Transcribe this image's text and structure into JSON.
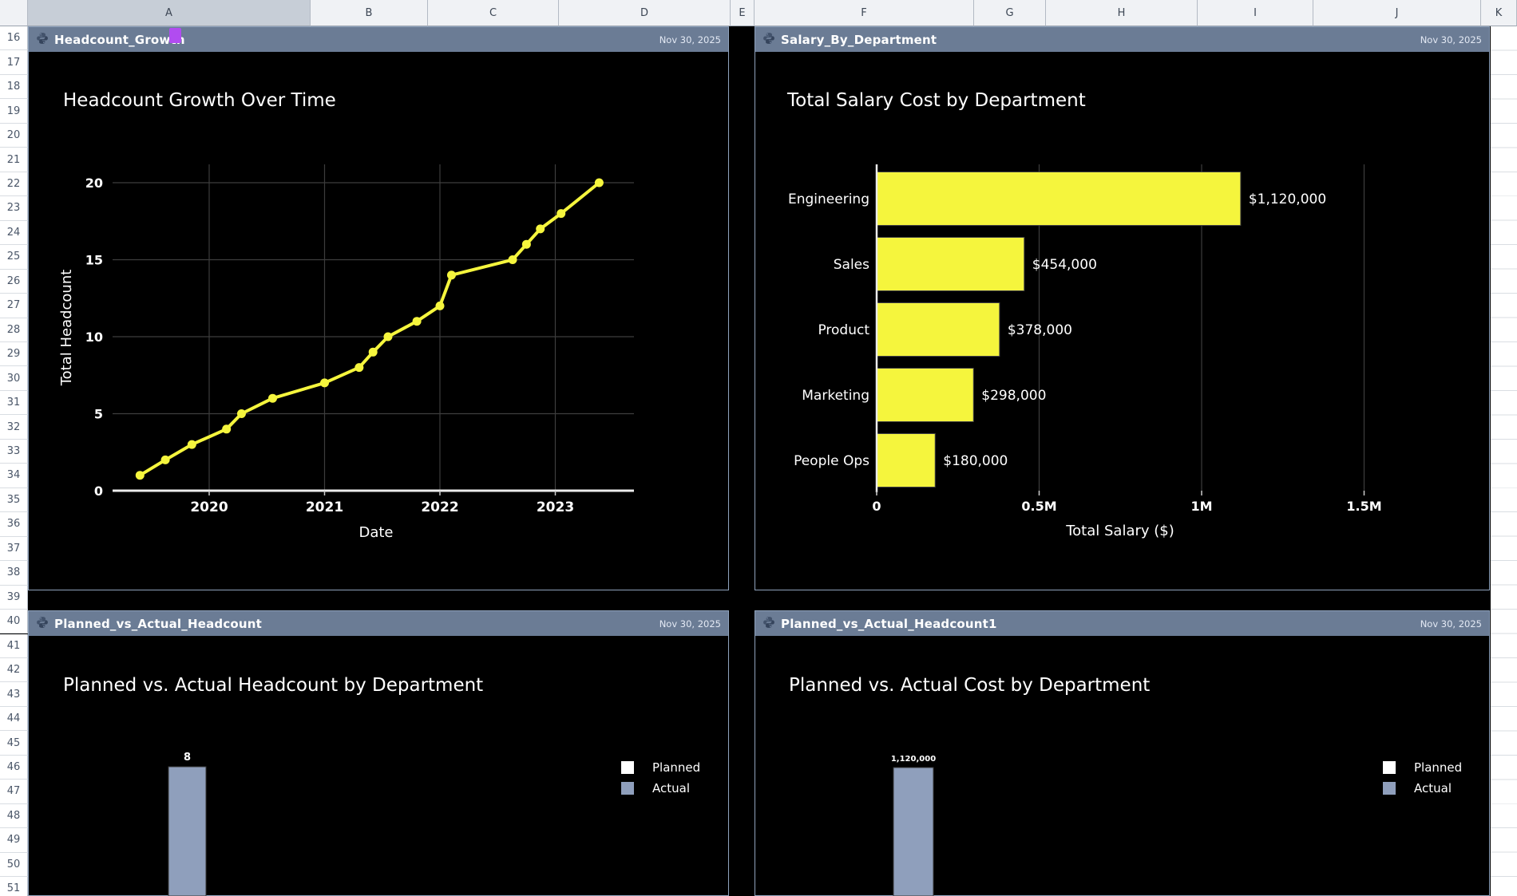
{
  "app": {
    "selected_column": "A",
    "collab_cursor_color": "#b14cf0",
    "titlebar_color": "#6b7c95",
    "chart_background": "#000000",
    "accent_yellow": "#f5f53d",
    "accent_slate": "#8f9fbc"
  },
  "columns": [
    "A",
    "B",
    "C",
    "D",
    "E",
    "F",
    "G",
    "H",
    "I",
    "J",
    "K"
  ],
  "rows": [
    16,
    17,
    18,
    19,
    20,
    21,
    22,
    23,
    24,
    25,
    26,
    27,
    28,
    29,
    30,
    31,
    32,
    33,
    34,
    35,
    36,
    37,
    38,
    39,
    40,
    41,
    42,
    43,
    44,
    45,
    46,
    47,
    48,
    49,
    50,
    51
  ],
  "panels": [
    {
      "name": "Headcount_Growth",
      "date": "Nov 30, 2025",
      "icon": "python-chart-icon"
    },
    {
      "name": "Salary_By_Department",
      "date": "Nov 30, 2025",
      "icon": "python-chart-icon"
    },
    {
      "name": "Planned_vs_Actual_Headcount",
      "date": "Nov 30, 2025",
      "icon": "python-chart-icon"
    },
    {
      "name": "Planned_vs_Actual_Headcount1",
      "date": "Nov 30, 2025",
      "icon": "python-chart-icon"
    }
  ],
  "chart_data": [
    {
      "type": "line",
      "title": "Headcount Growth Over Time",
      "xlabel": "Date",
      "ylabel": "Total Headcount",
      "x": [
        2019.4,
        2019.62,
        2019.85,
        2020.15,
        2020.28,
        2020.55,
        2021.0,
        2021.3,
        2021.42,
        2021.55,
        2021.8,
        2022.0,
        2022.1,
        2022.63,
        2022.75,
        2022.87,
        2023.05,
        2023.38
      ],
      "values": [
        1,
        2,
        3,
        4,
        5,
        6,
        7,
        8,
        9,
        10,
        11,
        12,
        14,
        15,
        16,
        17,
        18,
        20
      ],
      "xticks": [
        "2020",
        "2021",
        "2022",
        "2023"
      ],
      "xtick_values": [
        2020,
        2021,
        2022,
        2023
      ],
      "yticks": [
        0,
        5,
        10,
        15,
        20
      ],
      "xlim": [
        2019.2,
        2023.7
      ],
      "ylim": [
        0,
        21
      ],
      "grid": true,
      "line_color": "#f5f53d"
    },
    {
      "type": "bar",
      "orientation": "horizontal",
      "title": "Total Salary Cost by Department",
      "categories": [
        "Engineering",
        "Sales",
        "Product",
        "Marketing",
        "People Ops"
      ],
      "values": [
        1120000,
        454000,
        378000,
        298000,
        180000
      ],
      "value_labels": [
        "$1,120,000",
        "$454,000",
        "$378,000",
        "$298,000",
        "$180,000"
      ],
      "xticks": [
        "0",
        "0.5M",
        "1M",
        "1.5M"
      ],
      "xtick_values": [
        0,
        500000,
        1000000,
        1500000
      ],
      "xlabel": "Total Salary ($)",
      "xlim": [
        0,
        1680000
      ],
      "grid": true,
      "bar_color": "#f5f53d"
    },
    {
      "type": "bar",
      "title": "Planned vs. Actual Headcount by Department",
      "legend": [
        {
          "label": "Planned",
          "color": "#ffffff"
        },
        {
          "label": "Actual",
          "color": "#8f9fbc"
        }
      ],
      "visible_bars": [
        {
          "series": "Actual",
          "value": 8,
          "label": "8",
          "color": "#8f9fbc"
        }
      ]
    },
    {
      "type": "bar",
      "title": "Planned vs. Actual Cost by Department",
      "legend": [
        {
          "label": "Planned",
          "color": "#ffffff"
        },
        {
          "label": "Actual",
          "color": "#8f9fbc"
        }
      ],
      "visible_bars": [
        {
          "series": "Actual",
          "value": 1120000,
          "label": "1,120,000",
          "color": "#8f9fbc"
        }
      ]
    }
  ]
}
